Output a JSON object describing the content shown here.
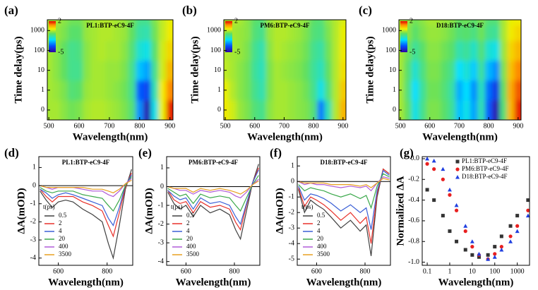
{
  "chart_data": [
    {
      "type": "heatmap",
      "panel_label": "(a)",
      "title": "PL1:BTP-eC9-4F",
      "x_label": "Wavelength(nm)",
      "y_label": "Time delay(ps)",
      "x": [
        500,
        525,
        550,
        575,
        600,
        625,
        650,
        675,
        700,
        725,
        750,
        775,
        800,
        825,
        850,
        875,
        900
      ],
      "y": [
        0,
        1,
        10,
        100,
        1000,
        3500
      ],
      "yscale": "symlog",
      "xlim": [
        495,
        910
      ],
      "ylim": [
        -0.5,
        3500
      ],
      "xticks": [
        500,
        600,
        700,
        800,
        900
      ],
      "yticks": [
        0,
        1,
        10,
        100,
        1000
      ],
      "zlim": [
        -5,
        2
      ],
      "zticks": [
        2,
        -5
      ],
      "z": [
        [
          -0.3,
          -0.3,
          -0.5,
          -0.7,
          -0.6,
          -0.3,
          -0.2,
          -0.2,
          -0.3,
          -0.4,
          -0.6,
          -1.0,
          -3.0,
          -4.8,
          -2.0,
          0.2,
          1.8
        ],
        [
          -0.3,
          -0.4,
          -0.6,
          -1.0,
          -0.9,
          -0.4,
          -0.3,
          -0.3,
          -0.4,
          -0.5,
          -0.7,
          -1.2,
          -3.5,
          -3.8,
          -1.5,
          0.3,
          1.2
        ],
        [
          -0.3,
          -0.5,
          -0.8,
          -1.2,
          -1.2,
          -0.5,
          -0.3,
          -0.3,
          -0.4,
          -0.4,
          -0.6,
          -1.2,
          -2.5,
          -2.8,
          -1.2,
          0.0,
          0.8
        ],
        [
          -0.3,
          -0.5,
          -0.8,
          -1.2,
          -1.1,
          -0.5,
          -0.3,
          -0.2,
          -0.3,
          -0.3,
          -0.5,
          -1.0,
          -1.8,
          -2.0,
          -0.9,
          0.0,
          0.5
        ],
        [
          -0.3,
          -0.4,
          -0.6,
          -0.9,
          -0.9,
          -0.4,
          -0.3,
          -0.2,
          -0.2,
          -0.3,
          -0.4,
          -0.8,
          -1.4,
          -1.5,
          -0.7,
          -0.1,
          0.3
        ],
        [
          -0.3,
          -0.3,
          -0.5,
          -0.7,
          -0.7,
          -0.4,
          -0.3,
          -0.2,
          -0.2,
          -0.3,
          -0.4,
          -0.7,
          -1.2,
          -1.2,
          -0.6,
          -0.1,
          0.2
        ]
      ]
    },
    {
      "type": "heatmap",
      "panel_label": "(b)",
      "title": "PM6:BTP-eC9-4F",
      "x_label": "Wavelength(nm)",
      "y_label": "Time delay(ps)",
      "x": [
        500,
        525,
        550,
        575,
        600,
        625,
        650,
        675,
        700,
        725,
        750,
        775,
        800,
        825,
        850,
        875,
        900
      ],
      "y": [
        0,
        1,
        10,
        100,
        1000,
        3500
      ],
      "yscale": "symlog",
      "xlim": [
        495,
        910
      ],
      "ylim": [
        -0.5,
        3500
      ],
      "xticks": [
        500,
        600,
        700,
        800,
        900
      ],
      "yticks": [
        0,
        1,
        10,
        100,
        1000
      ],
      "zlim": [
        -5,
        2
      ],
      "zticks": [
        2,
        -5
      ],
      "z": [
        [
          0.3,
          0.0,
          -0.4,
          -0.6,
          -1.0,
          -1.2,
          -0.5,
          -0.3,
          -0.3,
          -0.4,
          -0.5,
          -0.6,
          -1.0,
          -3.2,
          -1.5,
          -0.2,
          0.8
        ],
        [
          0.2,
          -0.2,
          -0.5,
          -0.7,
          -1.2,
          -1.5,
          -0.6,
          -0.3,
          -0.3,
          -0.4,
          -0.5,
          -0.7,
          -1.2,
          -2.0,
          -1.0,
          -0.2,
          0.6
        ],
        [
          -0.1,
          -0.3,
          -0.5,
          -0.7,
          -1.3,
          -1.6,
          -0.6,
          -0.3,
          -0.4,
          -0.5,
          -0.6,
          -0.8,
          -1.3,
          -1.6,
          -0.8,
          -0.2,
          0.4
        ],
        [
          -0.2,
          -0.3,
          -0.4,
          -0.6,
          -1.2,
          -1.5,
          -0.5,
          -0.2,
          -0.3,
          -0.4,
          -0.5,
          -0.7,
          -1.2,
          -1.4,
          -0.7,
          -0.2,
          0.3
        ],
        [
          -0.2,
          -0.3,
          -0.4,
          -0.5,
          -1.0,
          -1.2,
          -0.4,
          -0.2,
          -0.2,
          -0.3,
          -0.4,
          -0.6,
          -1.0,
          -1.1,
          -0.6,
          -0.2,
          0.2
        ],
        [
          -0.2,
          -0.2,
          -0.3,
          -0.5,
          -0.9,
          -1.0,
          -0.4,
          -0.2,
          -0.2,
          -0.3,
          -0.4,
          -0.5,
          -0.9,
          -1.0,
          -0.5,
          -0.2,
          0.1
        ]
      ]
    },
    {
      "type": "heatmap",
      "panel_label": "(c)",
      "title": "D18:BTP-eC9-4F",
      "x_label": "Wavelength(nm)",
      "y_label": "Time delay(ps)",
      "x": [
        500,
        525,
        550,
        575,
        600,
        625,
        650,
        675,
        700,
        725,
        750,
        775,
        800,
        825,
        850,
        875,
        900
      ],
      "y": [
        0,
        1,
        10,
        100,
        1000,
        3500
      ],
      "yscale": "symlog",
      "xlim": [
        495,
        910
      ],
      "ylim": [
        -0.5,
        3500
      ],
      "xticks": [
        500,
        600,
        700,
        800,
        900
      ],
      "yticks": [
        0,
        1,
        10,
        100,
        1000
      ],
      "zlim": [
        -5,
        2
      ],
      "zticks": [
        2,
        -5
      ],
      "z": [
        [
          -0.3,
          -0.8,
          -2.0,
          -1.2,
          -0.6,
          -0.6,
          -0.9,
          -1.3,
          -2.5,
          -2.0,
          -2.8,
          -1.5,
          -3.5,
          -4.8,
          -1.0,
          0.8,
          1.8
        ],
        [
          -0.3,
          -1.0,
          -2.2,
          -1.3,
          -0.7,
          -0.7,
          -1.0,
          -1.4,
          -2.7,
          -2.2,
          -3.0,
          -1.6,
          -3.3,
          -4.0,
          -0.8,
          0.9,
          1.5
        ],
        [
          -0.3,
          -0.9,
          -1.8,
          -1.1,
          -0.6,
          -0.6,
          -0.9,
          -1.2,
          -2.2,
          -1.8,
          -2.4,
          -1.3,
          -2.6,
          -3.0,
          -0.6,
          0.7,
          1.2
        ],
        [
          -0.3,
          -0.7,
          -1.3,
          -0.9,
          -0.5,
          -0.5,
          -0.7,
          -0.9,
          -1.5,
          -1.3,
          -1.7,
          -1.0,
          -1.8,
          -2.0,
          -0.4,
          0.5,
          0.8
        ],
        [
          -0.2,
          -0.5,
          -0.9,
          -0.6,
          -0.4,
          -0.4,
          -0.5,
          -0.7,
          -1.0,
          -0.9,
          -1.1,
          -0.7,
          -1.2,
          -1.3,
          -0.3,
          0.3,
          0.5
        ],
        [
          -0.2,
          -0.4,
          -0.7,
          -0.5,
          -0.3,
          -0.3,
          -0.4,
          -0.5,
          -0.8,
          -0.7,
          -0.9,
          -0.6,
          -1.0,
          -1.0,
          -0.3,
          0.2,
          0.3
        ]
      ]
    },
    {
      "type": "line",
      "panel_label": "(d)",
      "title": "PL1:BTP-eC9-4F",
      "x_label": "Wavelength(nm)",
      "y_label": "ΔA(mOD)",
      "legend_title": "t(ps)",
      "x": [
        525,
        550,
        575,
        600,
        630,
        660,
        700,
        740,
        780,
        805,
        825,
        850,
        875,
        900
      ],
      "xlim": [
        520,
        905
      ],
      "ylim": [
        -4.4,
        1.6
      ],
      "xticks": [
        600,
        800
      ],
      "yticks": [
        1,
        0,
        -1,
        -2,
        -3,
        -4
      ],
      "series": [
        {
          "name": "0.5",
          "color": "#404040",
          "values": [
            -0.3,
            -0.8,
            -1.2,
            -0.9,
            -0.8,
            -0.9,
            -1.3,
            -1.6,
            -2.0,
            -3.2,
            -4.0,
            -2.2,
            -0.2,
            0.9
          ]
        },
        {
          "name": "2",
          "color": "#e8312a",
          "values": [
            -0.2,
            -0.6,
            -0.9,
            -0.6,
            -0.6,
            -0.6,
            -0.9,
            -1.1,
            -1.4,
            -2.2,
            -2.8,
            -1.5,
            -0.1,
            0.7
          ]
        },
        {
          "name": "4",
          "color": "#3a5fd6",
          "values": [
            -0.2,
            -0.4,
            -0.7,
            -0.5,
            -0.4,
            -0.5,
            -0.7,
            -0.9,
            -1.1,
            -1.8,
            -2.2,
            -1.2,
            0.0,
            0.6
          ]
        },
        {
          "name": "20",
          "color": "#3aa84a",
          "values": [
            -0.1,
            -0.3,
            -0.4,
            -0.3,
            -0.3,
            -0.3,
            -0.5,
            -0.6,
            -0.7,
            -1.1,
            -1.4,
            -0.8,
            0.0,
            0.5
          ]
        },
        {
          "name": "400",
          "color": "#b05ad8",
          "values": [
            0.0,
            -0.1,
            -0.2,
            -0.1,
            -0.1,
            -0.1,
            -0.2,
            -0.3,
            -0.3,
            -0.5,
            -0.6,
            -0.3,
            0.1,
            0.4
          ]
        },
        {
          "name": "3500",
          "color": "#e8a020",
          "values": [
            0.0,
            -0.1,
            -0.1,
            -0.1,
            -0.1,
            -0.1,
            -0.1,
            -0.2,
            -0.2,
            -0.3,
            -0.4,
            -0.2,
            0.1,
            0.3
          ]
        }
      ]
    },
    {
      "type": "line",
      "panel_label": "(e)",
      "title": "PM6:BTP-eC9-4F",
      "x_label": "Wavelength(nm)",
      "y_label": "ΔA(mOD)",
      "legend_title": "t(ps)",
      "x": [
        525,
        550,
        575,
        600,
        630,
        660,
        700,
        740,
        780,
        805,
        825,
        850,
        875,
        900
      ],
      "xlim": [
        520,
        905
      ],
      "ylim": [
        -4.2,
        1.6
      ],
      "xticks": [
        600,
        800
      ],
      "yticks": [
        1,
        0,
        -1,
        -2,
        -3,
        -4
      ],
      "series": [
        {
          "name": "0.5",
          "color": "#404040",
          "values": [
            -0.3,
            -0.9,
            -1.2,
            -1.0,
            -1.6,
            -1.0,
            -1.4,
            -1.2,
            -1.5,
            -2.3,
            -2.8,
            -1.3,
            0.2,
            1.2
          ]
        },
        {
          "name": "2",
          "color": "#e8312a",
          "values": [
            -0.2,
            -0.7,
            -0.9,
            -0.8,
            -1.4,
            -0.8,
            -1.1,
            -1.0,
            -1.2,
            -1.9,
            -2.3,
            -1.0,
            0.2,
            1.0
          ]
        },
        {
          "name": "4",
          "color": "#3a5fd6",
          "values": [
            -0.2,
            -0.5,
            -0.7,
            -0.6,
            -1.2,
            -0.6,
            -0.9,
            -0.8,
            -1.0,
            -1.6,
            -2.0,
            -0.9,
            0.2,
            0.9
          ]
        },
        {
          "name": "20",
          "color": "#3aa84a",
          "values": [
            -0.1,
            -0.3,
            -0.5,
            -0.4,
            -0.9,
            -0.4,
            -0.6,
            -0.5,
            -0.6,
            -1.0,
            -1.3,
            -0.6,
            0.1,
            0.6
          ]
        },
        {
          "name": "400",
          "color": "#b05ad8",
          "values": [
            0.0,
            -0.1,
            -0.2,
            -0.2,
            -0.4,
            -0.2,
            -0.3,
            -0.2,
            -0.3,
            -0.5,
            -0.6,
            -0.3,
            0.1,
            0.4
          ]
        },
        {
          "name": "3500",
          "color": "#e8a020",
          "values": [
            0.0,
            -0.1,
            -0.1,
            -0.1,
            -0.3,
            -0.1,
            -0.2,
            -0.1,
            -0.2,
            -0.3,
            -0.4,
            -0.2,
            0.1,
            0.3
          ]
        }
      ]
    },
    {
      "type": "line",
      "panel_label": "(f)",
      "title": "D18:BTP-eC9-4F",
      "x_label": "Wavelength(nm)",
      "y_label": "ΔA(mOD)",
      "legend_title": "t(ps)",
      "x": [
        525,
        550,
        575,
        600,
        630,
        660,
        700,
        740,
        780,
        805,
        825,
        850,
        875,
        900
      ],
      "xlim": [
        520,
        905
      ],
      "ylim": [
        -5.4,
        1.6
      ],
      "xticks": [
        600,
        800
      ],
      "yticks": [
        1,
        0,
        -1,
        -2,
        -3,
        -4,
        -5
      ],
      "series": [
        {
          "name": "0.5",
          "color": "#404040",
          "values": [
            -0.5,
            -2.0,
            -1.2,
            -1.5,
            -1.8,
            -2.3,
            -3.0,
            -2.5,
            -3.2,
            -2.8,
            -4.8,
            -1.0,
            0.8,
            0.5
          ]
        },
        {
          "name": "2",
          "color": "#e8312a",
          "values": [
            -0.4,
            -1.6,
            -1.0,
            -1.2,
            -1.5,
            -1.9,
            -2.5,
            -2.0,
            -2.7,
            -2.3,
            -4.0,
            -0.8,
            0.8,
            0.5
          ]
        },
        {
          "name": "4",
          "color": "#3a5fd6",
          "values": [
            -0.3,
            -1.2,
            -0.8,
            -0.9,
            -1.1,
            -1.4,
            -1.9,
            -1.5,
            -2.0,
            -1.7,
            -3.1,
            -0.6,
            0.7,
            0.4
          ]
        },
        {
          "name": "20",
          "color": "#3aa84a",
          "values": [
            -0.2,
            -0.6,
            -0.4,
            -0.5,
            -0.6,
            -0.8,
            -1.0,
            -0.8,
            -1.1,
            -0.9,
            -1.7,
            -0.3,
            0.5,
            0.3
          ]
        },
        {
          "name": "400",
          "color": "#b05ad8",
          "values": [
            0.0,
            -0.2,
            -0.1,
            -0.2,
            -0.2,
            -0.3,
            -0.4,
            -0.3,
            -0.4,
            -0.3,
            -0.6,
            -0.1,
            0.3,
            0.2
          ]
        },
        {
          "name": "3500",
          "color": "#e8a020",
          "values": [
            0.0,
            -0.1,
            -0.1,
            -0.1,
            -0.1,
            -0.2,
            -0.2,
            -0.2,
            -0.3,
            -0.2,
            -0.4,
            -0.1,
            0.2,
            0.1
          ]
        }
      ]
    },
    {
      "type": "scatter",
      "panel_label": "(g)",
      "x_label": "Wavelength(nm)",
      "y_label": "Normalized ΔA",
      "xscale": "log",
      "x": [
        0.1,
        0.2,
        0.5,
        1,
        2,
        5,
        10,
        20,
        50,
        100,
        200,
        500,
        1000,
        3000
      ],
      "xlim": [
        0.06,
        3500
      ],
      "ylim": [
        -1.03,
        0.02
      ],
      "xticks": [
        0.1,
        1,
        10,
        100,
        1000
      ],
      "yticks": [
        {
          "value": 0,
          "label": "0.0"
        },
        -0.2,
        -0.4,
        -0.6,
        -0.8,
        {
          "value": -1,
          "label": "-1.0"
        }
      ],
      "series": [
        {
          "name": "PL1:BTP-eC9-4F",
          "color": "#333333",
          "marker": "square",
          "values": [
            -0.3,
            -0.4,
            -0.55,
            -0.7,
            -0.8,
            -0.88,
            -0.93,
            -0.95,
            -0.93,
            -0.85,
            -0.75,
            -0.65,
            -0.55,
            -0.4
          ]
        },
        {
          "name": "PM6:BTP-eC9-4F",
          "color": "#e82020",
          "marker": "circle",
          "values": [
            -0.05,
            -0.1,
            -0.2,
            -0.35,
            -0.5,
            -0.7,
            -0.85,
            -0.93,
            -0.97,
            -0.92,
            -0.85,
            -0.75,
            -0.65,
            -0.5
          ]
        },
        {
          "name": "D18:BTP-eC9-4F",
          "color": "#2040e0",
          "marker": "triangle",
          "values": [
            0.0,
            -0.02,
            -0.1,
            -0.3,
            -0.45,
            -0.65,
            -0.8,
            -0.92,
            -0.97,
            -0.95,
            -0.88,
            -0.8,
            -0.7,
            -0.55
          ]
        }
      ]
    }
  ]
}
